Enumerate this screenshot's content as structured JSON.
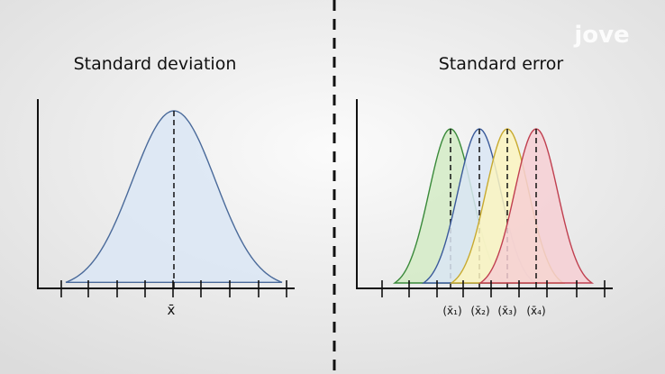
{
  "logo": "jove",
  "left_panel": {
    "title": "Standard deviation",
    "mean_label": "x̄"
  },
  "right_panel": {
    "title": "Standard error",
    "mean_labels": [
      "(x̄₁)",
      "(x̄₂)",
      "(x̄₃)",
      "(x̄₄)"
    ]
  }
}
